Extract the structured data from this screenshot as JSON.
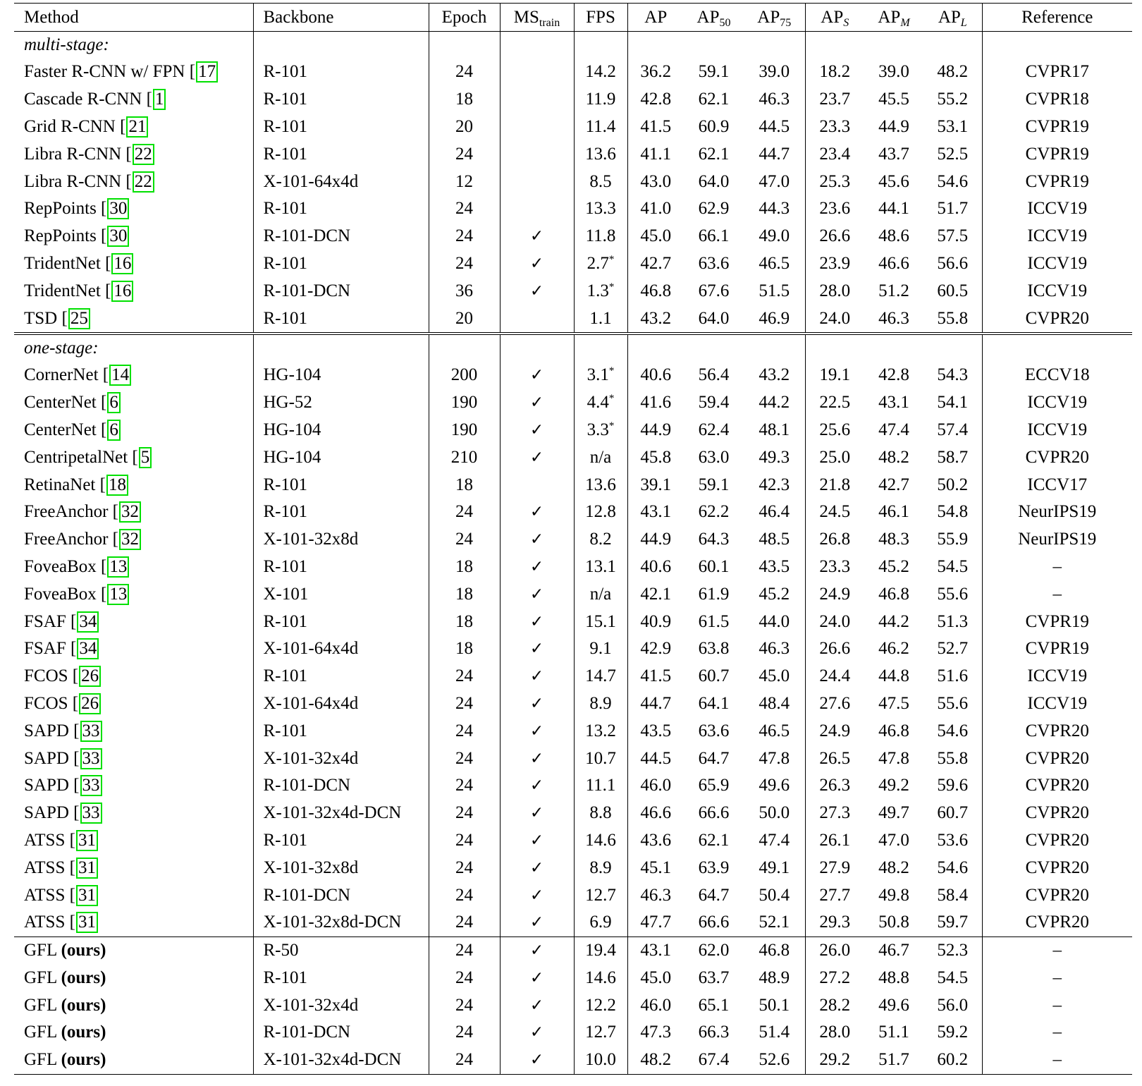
{
  "headers": {
    "method": "Method",
    "backbone": "Backbone",
    "epoch": "Epoch",
    "ms_base": "MS",
    "ms_sub": "train",
    "fps": "FPS",
    "ap": "AP",
    "ap50_base": "AP",
    "ap50_sub": "50",
    "ap75_base": "AP",
    "ap75_sub": "75",
    "aps_base": "AP",
    "aps_sub": "S",
    "apm_base": "AP",
    "apm_sub": "M",
    "apl_base": "AP",
    "apl_sub": "L",
    "reference": "Reference"
  },
  "checkmark": "✓",
  "asterisk": "*",
  "sections": {
    "multi": "multi-stage:",
    "one": "one-stage:"
  },
  "multi_rows": [
    {
      "name": "Faster R-CNN w/ FPN",
      "cite": "17",
      "backbone": "R-101",
      "epoch": "24",
      "ms": false,
      "fps": "14.2",
      "fps_star": false,
      "ap": "36.2",
      "ap50": "59.1",
      "ap75": "39.0",
      "aps": "18.2",
      "apm": "39.0",
      "apl": "48.2",
      "ref": "CVPR17"
    },
    {
      "name": "Cascade R-CNN",
      "cite": "1",
      "backbone": "R-101",
      "epoch": "18",
      "ms": false,
      "fps": "11.9",
      "fps_star": false,
      "ap": "42.8",
      "ap50": "62.1",
      "ap75": "46.3",
      "aps": "23.7",
      "apm": "45.5",
      "apl": "55.2",
      "ref": "CVPR18"
    },
    {
      "name": "Grid R-CNN",
      "cite": "21",
      "backbone": "R-101",
      "epoch": "20",
      "ms": false,
      "fps": "11.4",
      "fps_star": false,
      "ap": "41.5",
      "ap50": "60.9",
      "ap75": "44.5",
      "aps": "23.3",
      "apm": "44.9",
      "apl": "53.1",
      "ref": "CVPR19"
    },
    {
      "name": "Libra R-CNN",
      "cite": "22",
      "backbone": "R-101",
      "epoch": "24",
      "ms": false,
      "fps": "13.6",
      "fps_star": false,
      "ap": "41.1",
      "ap50": "62.1",
      "ap75": "44.7",
      "aps": "23.4",
      "apm": "43.7",
      "apl": "52.5",
      "ref": "CVPR19"
    },
    {
      "name": "Libra R-CNN",
      "cite": "22",
      "backbone": "X-101-64x4d",
      "epoch": "12",
      "ms": false,
      "fps": "8.5",
      "fps_star": false,
      "ap": "43.0",
      "ap50": "64.0",
      "ap75": "47.0",
      "aps": "25.3",
      "apm": "45.6",
      "apl": "54.6",
      "ref": "CVPR19"
    },
    {
      "name": "RepPoints",
      "cite": "30",
      "backbone": "R-101",
      "epoch": "24",
      "ms": false,
      "fps": "13.3",
      "fps_star": false,
      "ap": "41.0",
      "ap50": "62.9",
      "ap75": "44.3",
      "aps": "23.6",
      "apm": "44.1",
      "apl": "51.7",
      "ref": "ICCV19"
    },
    {
      "name": "RepPoints",
      "cite": "30",
      "backbone": "R-101-DCN",
      "epoch": "24",
      "ms": true,
      "fps": "11.8",
      "fps_star": false,
      "ap": "45.0",
      "ap50": "66.1",
      "ap75": "49.0",
      "aps": "26.6",
      "apm": "48.6",
      "apl": "57.5",
      "ref": "ICCV19"
    },
    {
      "name": "TridentNet",
      "cite": "16",
      "backbone": "R-101",
      "epoch": "24",
      "ms": true,
      "fps": "2.7",
      "fps_star": true,
      "ap": "42.7",
      "ap50": "63.6",
      "ap75": "46.5",
      "aps": "23.9",
      "apm": "46.6",
      "apl": "56.6",
      "ref": "ICCV19"
    },
    {
      "name": "TridentNet",
      "cite": "16",
      "backbone": "R-101-DCN",
      "epoch": "36",
      "ms": true,
      "fps": "1.3",
      "fps_star": true,
      "ap": "46.8",
      "ap50": "67.6",
      "ap75": "51.5",
      "aps": "28.0",
      "apm": "51.2",
      "apl": "60.5",
      "ref": "ICCV19"
    },
    {
      "name": "TSD",
      "cite": "25",
      "backbone": "R-101",
      "epoch": "20",
      "ms": false,
      "fps": "1.1",
      "fps_star": false,
      "ap": "43.2",
      "ap50": "64.0",
      "ap75": "46.9",
      "aps": "24.0",
      "apm": "46.3",
      "apl": "55.8",
      "ref": "CVPR20"
    }
  ],
  "one_rows": [
    {
      "name": "CornerNet",
      "cite": "14",
      "backbone": "HG-104",
      "epoch": "200",
      "ms": true,
      "fps": "3.1",
      "fps_star": true,
      "ap": "40.6",
      "ap50": "56.4",
      "ap75": "43.2",
      "aps": "19.1",
      "apm": "42.8",
      "apl": "54.3",
      "ref": "ECCV18"
    },
    {
      "name": "CenterNet",
      "cite": "6",
      "backbone": "HG-52",
      "epoch": "190",
      "ms": true,
      "fps": "4.4",
      "fps_star": true,
      "ap": "41.6",
      "ap50": "59.4",
      "ap75": "44.2",
      "aps": "22.5",
      "apm": "43.1",
      "apl": "54.1",
      "ref": "ICCV19"
    },
    {
      "name": "CenterNet",
      "cite": "6",
      "backbone": "HG-104",
      "epoch": "190",
      "ms": true,
      "fps": "3.3",
      "fps_star": true,
      "ap": "44.9",
      "ap50": "62.4",
      "ap75": "48.1",
      "aps": "25.6",
      "apm": "47.4",
      "apl": "57.4",
      "ref": "ICCV19"
    },
    {
      "name": "CentripetalNet",
      "cite": "5",
      "backbone": "HG-104",
      "epoch": "210",
      "ms": true,
      "fps": "n/a",
      "fps_star": false,
      "ap": "45.8",
      "ap50": "63.0",
      "ap75": "49.3",
      "aps": "25.0",
      "apm": "48.2",
      "apl": "58.7",
      "ref": "CVPR20"
    },
    {
      "name": "RetinaNet",
      "cite": "18",
      "backbone": "R-101",
      "epoch": "18",
      "ms": false,
      "fps": "13.6",
      "fps_star": false,
      "ap": "39.1",
      "ap50": "59.1",
      "ap75": "42.3",
      "aps": "21.8",
      "apm": "42.7",
      "apl": "50.2",
      "ref": "ICCV17"
    },
    {
      "name": "FreeAnchor",
      "cite": "32",
      "backbone": "R-101",
      "epoch": "24",
      "ms": true,
      "fps": "12.8",
      "fps_star": false,
      "ap": "43.1",
      "ap50": "62.2",
      "ap75": "46.4",
      "aps": "24.5",
      "apm": "46.1",
      "apl": "54.8",
      "ref": "NeurIPS19"
    },
    {
      "name": "FreeAnchor",
      "cite": "32",
      "backbone": "X-101-32x8d",
      "epoch": "24",
      "ms": true,
      "fps": "8.2",
      "fps_star": false,
      "ap": "44.9",
      "ap50": "64.3",
      "ap75": "48.5",
      "aps": "26.8",
      "apm": "48.3",
      "apl": "55.9",
      "ref": "NeurIPS19"
    },
    {
      "name": "FoveaBox",
      "cite": "13",
      "backbone": "R-101",
      "epoch": "18",
      "ms": true,
      "fps": "13.1",
      "fps_star": false,
      "ap": "40.6",
      "ap50": "60.1",
      "ap75": "43.5",
      "aps": "23.3",
      "apm": "45.2",
      "apl": "54.5",
      "ref": "–"
    },
    {
      "name": "FoveaBox",
      "cite": "13",
      "backbone": "X-101",
      "epoch": "18",
      "ms": true,
      "fps": "n/a",
      "fps_star": false,
      "ap": "42.1",
      "ap50": "61.9",
      "ap75": "45.2",
      "aps": "24.9",
      "apm": "46.8",
      "apl": "55.6",
      "ref": "–"
    },
    {
      "name": "FSAF",
      "cite": "34",
      "backbone": "R-101",
      "epoch": "18",
      "ms": true,
      "fps": "15.1",
      "fps_star": false,
      "ap": "40.9",
      "ap50": "61.5",
      "ap75": "44.0",
      "aps": "24.0",
      "apm": "44.2",
      "apl": "51.3",
      "ref": "CVPR19"
    },
    {
      "name": "FSAF",
      "cite": "34",
      "backbone": "X-101-64x4d",
      "epoch": "18",
      "ms": true,
      "fps": "9.1",
      "fps_star": false,
      "ap": "42.9",
      "ap50": "63.8",
      "ap75": "46.3",
      "aps": "26.6",
      "apm": "46.2",
      "apl": "52.7",
      "ref": "CVPR19"
    },
    {
      "name": "FCOS",
      "cite": "26",
      "backbone": "R-101",
      "epoch": "24",
      "ms": true,
      "fps": "14.7",
      "fps_star": false,
      "ap": "41.5",
      "ap50": "60.7",
      "ap75": "45.0",
      "aps": "24.4",
      "apm": "44.8",
      "apl": "51.6",
      "ref": "ICCV19"
    },
    {
      "name": "FCOS",
      "cite": "26",
      "backbone": "X-101-64x4d",
      "epoch": "24",
      "ms": true,
      "fps": "8.9",
      "fps_star": false,
      "ap": "44.7",
      "ap50": "64.1",
      "ap75": "48.4",
      "aps": "27.6",
      "apm": "47.5",
      "apl": "55.6",
      "ref": "ICCV19"
    },
    {
      "name": "SAPD",
      "cite": "33",
      "backbone": "R-101",
      "epoch": "24",
      "ms": true,
      "fps": "13.2",
      "fps_star": false,
      "ap": "43.5",
      "ap50": "63.6",
      "ap75": "46.5",
      "aps": "24.9",
      "apm": "46.8",
      "apl": "54.6",
      "ref": "CVPR20"
    },
    {
      "name": "SAPD",
      "cite": "33",
      "backbone": "X-101-32x4d",
      "epoch": "24",
      "ms": true,
      "fps": "10.7",
      "fps_star": false,
      "ap": "44.5",
      "ap50": "64.7",
      "ap75": "47.8",
      "aps": "26.5",
      "apm": "47.8",
      "apl": "55.8",
      "ref": "CVPR20"
    },
    {
      "name": "SAPD",
      "cite": "33",
      "backbone": "R-101-DCN",
      "epoch": "24",
      "ms": true,
      "fps": "11.1",
      "fps_star": false,
      "ap": "46.0",
      "ap50": "65.9",
      "ap75": "49.6",
      "aps": "26.3",
      "apm": "49.2",
      "apl": "59.6",
      "ref": "CVPR20"
    },
    {
      "name": "SAPD",
      "cite": "33",
      "backbone": "X-101-32x4d-DCN",
      "epoch": "24",
      "ms": true,
      "fps": "8.8",
      "fps_star": false,
      "ap": "46.6",
      "ap50": "66.6",
      "ap75": "50.0",
      "aps": "27.3",
      "apm": "49.7",
      "apl": "60.7",
      "ref": "CVPR20"
    },
    {
      "name": "ATSS",
      "cite": "31",
      "backbone": "R-101",
      "epoch": "24",
      "ms": true,
      "fps": "14.6",
      "fps_star": false,
      "ap": "43.6",
      "ap50": "62.1",
      "ap75": "47.4",
      "aps": "26.1",
      "apm": "47.0",
      "apl": "53.6",
      "ref": "CVPR20"
    },
    {
      "name": "ATSS",
      "cite": "31",
      "backbone": "X-101-32x8d",
      "epoch": "24",
      "ms": true,
      "fps": "8.9",
      "fps_star": false,
      "ap": "45.1",
      "ap50": "63.9",
      "ap75": "49.1",
      "aps": "27.9",
      "apm": "48.2",
      "apl": "54.6",
      "ref": "CVPR20"
    },
    {
      "name": "ATSS",
      "cite": "31",
      "backbone": "R-101-DCN",
      "epoch": "24",
      "ms": true,
      "fps": "12.7",
      "fps_star": false,
      "ap": "46.3",
      "ap50": "64.7",
      "ap75": "50.4",
      "aps": "27.7",
      "apm": "49.8",
      "apl": "58.4",
      "ref": "CVPR20"
    },
    {
      "name": "ATSS",
      "cite": "31",
      "backbone": "X-101-32x8d-DCN",
      "epoch": "24",
      "ms": true,
      "fps": "6.9",
      "fps_star": false,
      "ap": "47.7",
      "ap50": "66.6",
      "ap75": "52.1",
      "aps": "29.3",
      "apm": "50.8",
      "apl": "59.7",
      "ref": "CVPR20"
    }
  ],
  "gfl_rows": [
    {
      "name": "GFL",
      "ours": "(ours)",
      "backbone": "R-50",
      "epoch": "24",
      "ms": true,
      "fps": "19.4",
      "fps_star": false,
      "ap": "43.1",
      "ap50": "62.0",
      "ap75": "46.8",
      "aps": "26.0",
      "apm": "46.7",
      "apl": "52.3",
      "ref": "–"
    },
    {
      "name": "GFL",
      "ours": "(ours)",
      "backbone": "R-101",
      "epoch": "24",
      "ms": true,
      "fps": "14.6",
      "fps_star": false,
      "ap": "45.0",
      "ap50": "63.7",
      "ap75": "48.9",
      "aps": "27.2",
      "apm": "48.8",
      "apl": "54.5",
      "ref": "–"
    },
    {
      "name": "GFL",
      "ours": "(ours)",
      "backbone": "X-101-32x4d",
      "epoch": "24",
      "ms": true,
      "fps": "12.2",
      "fps_star": false,
      "ap": "46.0",
      "ap50": "65.1",
      "ap75": "50.1",
      "aps": "28.2",
      "apm": "49.6",
      "apl": "56.0",
      "ref": "–"
    },
    {
      "name": "GFL",
      "ours": "(ours)",
      "backbone": "R-101-DCN",
      "epoch": "24",
      "ms": true,
      "fps": "12.7",
      "fps_star": false,
      "ap": "47.3",
      "ap50": "66.3",
      "ap75": "51.4",
      "aps": "28.0",
      "apm": "51.1",
      "apl": "59.2",
      "ref": "–"
    },
    {
      "name": "GFL",
      "ours": "(ours)",
      "backbone": "X-101-32x4d-DCN",
      "epoch": "24",
      "ms": true,
      "fps": "10.0",
      "fps_star": false,
      "ap": "48.2",
      "ap50": "67.4",
      "ap75": "52.6",
      "aps": "29.2",
      "apm": "51.7",
      "apl": "60.2",
      "ref": "–"
    }
  ]
}
